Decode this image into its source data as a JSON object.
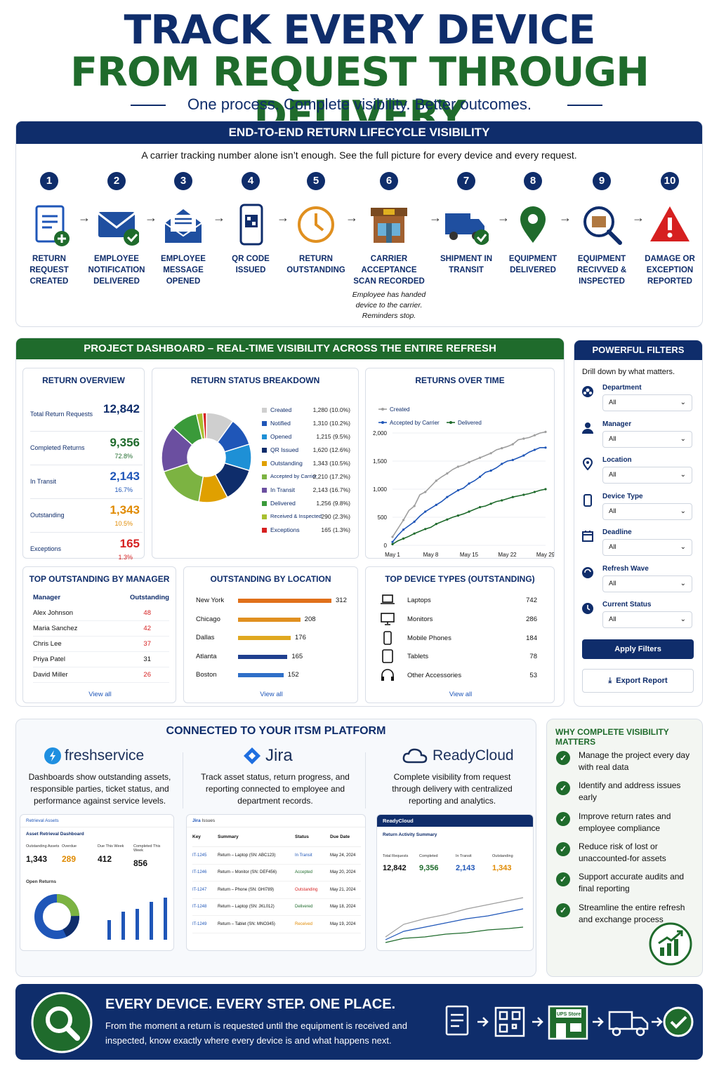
{
  "hero": {
    "line1": "TRACK EVERY DEVICE",
    "line2": "FROM REQUEST THROUGH DELIVERY",
    "tagline": "One process. Complete visibility. Better outcomes."
  },
  "lifecycle": {
    "title": "END-TO-END RETURN LIFECYCLE VISIBILITY",
    "subtitle": "A carrier tracking number alone isn’t enough. See the full picture for every device and every request.",
    "steps": [
      {
        "n": "1",
        "label": "RETURN REQUEST CREATED",
        "icon": "document-plus-icon"
      },
      {
        "n": "2",
        "label": "EMPLOYEE NOTIFICATION DELIVERED",
        "icon": "envelope-check-icon"
      },
      {
        "n": "3",
        "label": "EMPLOYEE MESSAGE OPENED",
        "icon": "open-envelope-icon"
      },
      {
        "n": "4",
        "label": "QR CODE ISSUED",
        "icon": "phone-qr-icon"
      },
      {
        "n": "5",
        "label": "RETURN OUTSTANDING",
        "icon": "clock-icon"
      },
      {
        "n": "6",
        "label": "CARRIER ACCEPTANCE SCAN RECORDED",
        "icon": "store-icon",
        "note": "Employee has handed device to the carrier. Reminders stop."
      },
      {
        "n": "7",
        "label": "SHIPMENT IN TRANSIT",
        "icon": "truck-check-icon"
      },
      {
        "n": "8",
        "label": "EQUIPMENT DELIVERED",
        "icon": "map-pin-icon"
      },
      {
        "n": "9",
        "label": "EQUIPMENT RECIVVED & INSPECTED",
        "icon": "box-magnifier-icon"
      },
      {
        "n": "10",
        "label": "DAMAGE OR EXCEPTION REPORTED",
        "icon": "warning-icon"
      }
    ]
  },
  "dashboard": {
    "title": "PROJECT DASHBOARD – REAL-TIME VISIBILITY ACROSS THE ENTIRE REFRESH",
    "overview": {
      "title": "RETURN OVERVIEW",
      "rows": [
        {
          "label": "Total Return Requests",
          "value": "12,842",
          "pct": "",
          "color": "#0f2d6b"
        },
        {
          "label": "Completed Returns",
          "value": "9,356",
          "pct": "72.8%",
          "color": "#1f6b2c"
        },
        {
          "label": "In Transit",
          "value": "2,143",
          "pct": "16.7%",
          "color": "#1f56b8"
        },
        {
          "label": "Outstanding",
          "value": "1,343",
          "pct": "10.5%",
          "color": "#e08a00"
        },
        {
          "label": "Exceptions",
          "value": "165",
          "pct": "1.3%",
          "color": "#d62020"
        }
      ]
    },
    "breakdown": {
      "title": "RETURN STATUS BREAKDOWN",
      "items": [
        {
          "name": "Created",
          "value": "1,280 (10.0%)",
          "pct": 10.0,
          "color": "#cfcfcf"
        },
        {
          "name": "Notified",
          "value": "1,310 (10.2%)",
          "pct": 10.2,
          "color": "#1f56b8"
        },
        {
          "name": "Opened",
          "value": "1,215 (9.5%)",
          "pct": 9.5,
          "color": "#1e90d6"
        },
        {
          "name": "QR Issued",
          "value": "1,620 (12.6%)",
          "pct": 12.6,
          "color": "#0f2d6b"
        },
        {
          "name": "Outstanding",
          "value": "1,343 (10.5%)",
          "pct": 10.5,
          "color": "#e0a000"
        },
        {
          "name": "Accepted by Carrier",
          "value": "2,210 (17.2%)",
          "pct": 17.2,
          "color": "#7cb342"
        },
        {
          "name": "In Transit",
          "value": "2,143 (16.7%)",
          "pct": 16.7,
          "color": "#6b4fa0"
        },
        {
          "name": "Delivered",
          "value": "1,256 (9.8%)",
          "pct": 9.8,
          "color": "#3a9a3a"
        },
        {
          "name": "Received & Inspected",
          "value": "290 (2.3%)",
          "pct": 2.3,
          "color": "#a8c030"
        },
        {
          "name": "Exceptions",
          "value": "165 (1.3%)",
          "pct": 1.3,
          "color": "#d62020"
        }
      ]
    },
    "over_time": {
      "title": "RETURNS OVER TIME"
    },
    "managers": {
      "title": "TOP OUTSTANDING BY MANAGER",
      "col1": "Manager",
      "col2": "Outstanding",
      "rows": [
        {
          "name": "Alex Johnson",
          "value": "48",
          "color": "#d62020"
        },
        {
          "name": "Maria Sanchez",
          "value": "42",
          "color": "#d62020"
        },
        {
          "name": "Chris Lee",
          "value": "37",
          "color": "#d62020"
        },
        {
          "name": "Priya Patel",
          "value": "31",
          "color": "#111"
        },
        {
          "name": "David Miller",
          "value": "26",
          "color": "#d62020"
        }
      ],
      "view_all": "View all"
    },
    "locations": {
      "title": "OUTSTANDING BY LOCATION",
      "rows": [
        {
          "name": "New York",
          "value": 312,
          "color": "#e0701a"
        },
        {
          "name": "Chicago",
          "value": 208,
          "color": "#e09020"
        },
        {
          "name": "Dallas",
          "value": 176,
          "color": "#e0a820"
        },
        {
          "name": "Atlanta",
          "value": 165,
          "color": "#1f3f8f"
        },
        {
          "name": "Boston",
          "value": 152,
          "color": "#2f6fc8"
        }
      ],
      "view_all": "View all"
    },
    "devices": {
      "title": "TOP DEVICE TYPES (OUTSTANDING)",
      "rows": [
        {
          "name": "Laptops",
          "value": "742",
          "icon": "laptop-icon"
        },
        {
          "name": "Monitors",
          "value": "286",
          "icon": "monitor-icon"
        },
        {
          "name": "Mobile Phones",
          "value": "184",
          "icon": "phone-icon"
        },
        {
          "name": "Tablets",
          "value": "78",
          "icon": "tablet-icon"
        },
        {
          "name": "Other Accessories",
          "value": "53",
          "icon": "headphones-icon"
        }
      ],
      "view_all": "View all"
    }
  },
  "chart_data": {
    "type": "line",
    "title": "RETURNS OVER TIME",
    "categories": [
      "May 1",
      "May 8",
      "May 15",
      "May 22",
      "May 29"
    ],
    "x": [
      0,
      1,
      2,
      3,
      4,
      5,
      6,
      7,
      8,
      9,
      10,
      11,
      12,
      13,
      14,
      15,
      16,
      17,
      18,
      19,
      20,
      21,
      22,
      23,
      24,
      25,
      26,
      27,
      28
    ],
    "ylim": [
      0,
      2000
    ],
    "yticks": [
      "0",
      "500",
      "1,000",
      "1,500",
      "2,000"
    ],
    "series": [
      {
        "name": "Created",
        "color": "#9e9e9e",
        "values": [
          150,
          300,
          450,
          620,
          700,
          900,
          950,
          1050,
          1150,
          1220,
          1280,
          1350,
          1400,
          1430,
          1480,
          1520,
          1560,
          1600,
          1640,
          1700,
          1730,
          1760,
          1800,
          1880,
          1900,
          1920,
          1960,
          2000,
          2020
        ]
      },
      {
        "name": "Accepted by Carrier",
        "color": "#1f56b8",
        "values": [
          60,
          180,
          280,
          350,
          420,
          520,
          600,
          660,
          720,
          780,
          860,
          920,
          980,
          1020,
          1100,
          1150,
          1220,
          1300,
          1330,
          1380,
          1450,
          1500,
          1520,
          1560,
          1600,
          1660,
          1700,
          1740,
          1740
        ]
      },
      {
        "name": "Delivered",
        "color": "#1f6b2c",
        "values": [
          20,
          80,
          120,
          160,
          210,
          250,
          290,
          320,
          380,
          420,
          460,
          500,
          530,
          560,
          600,
          640,
          680,
          700,
          740,
          780,
          800,
          830,
          860,
          880,
          900,
          920,
          950,
          980,
          1000
        ]
      }
    ]
  },
  "filters": {
    "title": "POWERFUL FILTERS",
    "subtitle": "Drill down by what matters.",
    "items": [
      {
        "label": "Department",
        "value": "All",
        "icon": "department-icon"
      },
      {
        "label": "Manager",
        "value": "All",
        "icon": "person-icon"
      },
      {
        "label": "Location",
        "value": "All",
        "icon": "location-icon"
      },
      {
        "label": "Device Type",
        "value": "All",
        "icon": "device-icon"
      },
      {
        "label": "Deadline",
        "value": "All",
        "icon": "calendar-icon"
      },
      {
        "label": "Refresh Wave",
        "value": "All",
        "icon": "refresh-icon"
      },
      {
        "label": "Current Status",
        "value": "All",
        "icon": "status-icon"
      }
    ],
    "apply": "Apply Filters",
    "export": "Export Report"
  },
  "itsm": {
    "title": "CONNECTED TO YOUR ITSM PLATFORM",
    "freshservice": {
      "name": "freshservice",
      "desc": "Dashboards show outstanding assets, responsible parties, ticket status, and performance against service levels.",
      "mini": {
        "header": "Retrieval Assets",
        "title": "Asset Retrieval Dashboard",
        "kpis": [
          {
            "l": "Outstanding Assets",
            "v": "1,343"
          },
          {
            "l": "Overdue",
            "v": "289"
          },
          {
            "l": "Due This Week",
            "v": "412"
          },
          {
            "l": "Completed This Week",
            "v": "856"
          }
        ],
        "panel1": "Asset Retrieval Dashboard",
        "panel2": "Open Returns"
      }
    },
    "jira": {
      "name": "Jira",
      "desc": "Track asset status, return progress, and reporting connected to employee and department records.",
      "mini": {
        "brand": "Jira",
        "header": "Issues",
        "cols": [
          "Key",
          "Summary",
          "Status",
          "Due Date"
        ],
        "rows": [
          {
            "key": "IT-1245",
            "summary": "Return – Laptop (SN: ABC123)",
            "status": "In Transit",
            "due": "May 24, 2024",
            "color": "#1f56b8"
          },
          {
            "key": "IT-1246",
            "summary": "Return – Monitor (SN: DEF456)",
            "status": "Accepted",
            "due": "May 20, 2024",
            "color": "#1f6b2c"
          },
          {
            "key": "IT-1247",
            "summary": "Return – Phone (SN: GHI789)",
            "status": "Outstanding",
            "due": "May 21, 2024",
            "color": "#d62020"
          },
          {
            "key": "IT-1248",
            "summary": "Return – Laptop (SN: JKL012)",
            "status": "Delivered",
            "due": "May 18, 2024",
            "color": "#1f6b2c"
          },
          {
            "key": "IT-1249",
            "summary": "Return – Tablet (SN: MNO345)",
            "status": "Received",
            "due": "May 19, 2024",
            "color": "#e08a00"
          }
        ]
      }
    },
    "readycloud": {
      "name": "ReadyCloud",
      "desc": "Complete visibility from request through delivery with centralized reporting and analytics.",
      "mini": {
        "brand": "ReadyCloud",
        "title": "Return Activity Summary",
        "kpis": [
          {
            "l": "Total Requests",
            "v": "12,842",
            "c": "#111"
          },
          {
            "l": "Completed",
            "v": "9,356",
            "c": "#1f6b2c"
          },
          {
            "l": "In Transit",
            "v": "2,143",
            "c": "#1f56b8"
          },
          {
            "l": "Outstanding",
            "v": "1,343",
            "c": "#e08a00"
          }
        ]
      }
    }
  },
  "why": {
    "title": "WHY COMPLETE VISIBILITY MATTERS",
    "items": [
      "Manage the project every day with real data",
      "Identify and address issues early",
      "Improve return rates and employee compliance",
      "Reduce risk of lost or unaccounted-for assets",
      "Support accurate audits and final reporting",
      "Streamline the entire refresh and exchange process"
    ]
  },
  "footer": {
    "title": "EVERY DEVICE. EVERY STEP. ONE PLACE.",
    "text": "From the moment a return is requested until the equipment is received and inspected, know exactly where every device is and what happens next.",
    "store_sign": "UPS Store"
  }
}
